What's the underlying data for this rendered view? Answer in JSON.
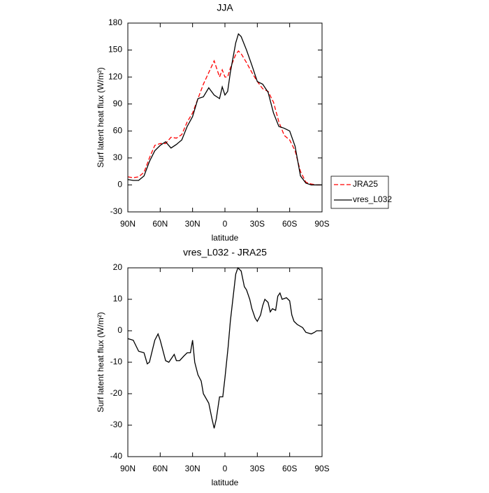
{
  "chart_data": [
    {
      "type": "line",
      "title": "JJA",
      "x_label": "latitude",
      "y_label": "Surf latent heat flux (W/m²)",
      "x": [
        90,
        85,
        80,
        75,
        70,
        65,
        60,
        55,
        50,
        45,
        40,
        35,
        30,
        25,
        20,
        15,
        10,
        5,
        2.5,
        0,
        -2.5,
        -5,
        -10,
        -12.5,
        -15,
        -20,
        -25,
        -30,
        -35,
        -40,
        -45,
        -50,
        -55,
        -60,
        -65,
        -70,
        -75,
        -80,
        -85,
        -90
      ],
      "series": [
        {
          "name": "JRA25",
          "color": "#ff0000",
          "dashed": true,
          "values": [
            9,
            8,
            9,
            14,
            30,
            44,
            46,
            46,
            53,
            52,
            56,
            70,
            80,
            96,
            112,
            125,
            138,
            120,
            128,
            120,
            120,
            130,
            145,
            149,
            146,
            136,
            125,
            115,
            107,
            104,
            92,
            70,
            55,
            50,
            38,
            15,
            3,
            1,
            0,
            0
          ]
        },
        {
          "name": "vres_L032",
          "color": "#000000",
          "dashed": false,
          "values": [
            6,
            5,
            5,
            10,
            26,
            38,
            44,
            48,
            41,
            45,
            50,
            65,
            76,
            96,
            98,
            108,
            100,
            96,
            109,
            100,
            104,
            125,
            158,
            168,
            165,
            150,
            133,
            115,
            112,
            103,
            80,
            65,
            63,
            60,
            43,
            10,
            2,
            0,
            0,
            0
          ]
        }
      ],
      "xlim": [
        90,
        -90
      ],
      "xticks": [
        {
          "value": 90,
          "label": "90N"
        },
        {
          "value": 60,
          "label": "60N"
        },
        {
          "value": 30,
          "label": "30N"
        },
        0,
        {
          "value": -30,
          "label": "30S"
        },
        {
          "value": -60,
          "label": "60S"
        },
        {
          "value": -90,
          "label": "90S"
        }
      ],
      "ylim": [
        -30,
        180
      ],
      "yticks": [
        -30,
        0,
        30,
        60,
        90,
        120,
        150,
        180
      ],
      "legend": "right"
    },
    {
      "type": "line",
      "title": "vres_L032 - JRA25",
      "x_label": "latitude",
      "y_label": "Surf latent heat flux (W/m²)",
      "x": [
        90,
        85,
        80,
        75,
        72,
        70,
        65,
        62,
        60,
        55,
        52,
        47,
        45,
        42,
        38,
        35,
        32,
        30,
        28,
        25,
        22,
        20,
        15,
        12,
        10,
        8,
        5,
        2,
        0,
        -3,
        -5,
        -8,
        -10,
        -12,
        -15,
        -18,
        -20,
        -23,
        -25,
        -28,
        -30,
        -33,
        -35,
        -37,
        -40,
        -42,
        -44,
        -47,
        -49,
        -51,
        -53,
        -57,
        -60,
        -62,
        -64,
        -67,
        -72,
        -75,
        -80,
        -83,
        -85,
        -90
      ],
      "series": [
        {
          "color": "#000000",
          "dashed": false,
          "values": [
            -2.5,
            -3,
            -6.5,
            -7,
            -10.5,
            -10,
            -3,
            -1,
            -3,
            -9.5,
            -10,
            -7.5,
            -9.5,
            -9.5,
            -8,
            -7,
            -7,
            -3,
            -10,
            -14,
            -16,
            -20,
            -23,
            -28,
            -31,
            -28,
            -21,
            -21,
            -15,
            -5,
            3,
            12,
            18,
            20,
            19,
            14,
            13,
            10,
            7,
            4,
            3,
            5,
            8,
            10,
            9,
            6,
            7,
            6.5,
            11,
            12,
            10,
            10.5,
            9.5,
            5,
            3,
            2,
            1,
            -0.5,
            -1,
            -0.5,
            0,
            0
          ]
        }
      ],
      "xlim": [
        90,
        -90
      ],
      "xticks": [
        {
          "value": 90,
          "label": "90N"
        },
        {
          "value": 60,
          "label": "60N"
        },
        {
          "value": 30,
          "label": "30N"
        },
        0,
        {
          "value": -30,
          "label": "30S"
        },
        {
          "value": -60,
          "label": "60S"
        },
        {
          "value": -90,
          "label": "90S"
        }
      ],
      "ylim": [
        -40,
        20
      ],
      "yticks": [
        -40,
        -30,
        -20,
        -10,
        0,
        10,
        20
      ]
    }
  ]
}
